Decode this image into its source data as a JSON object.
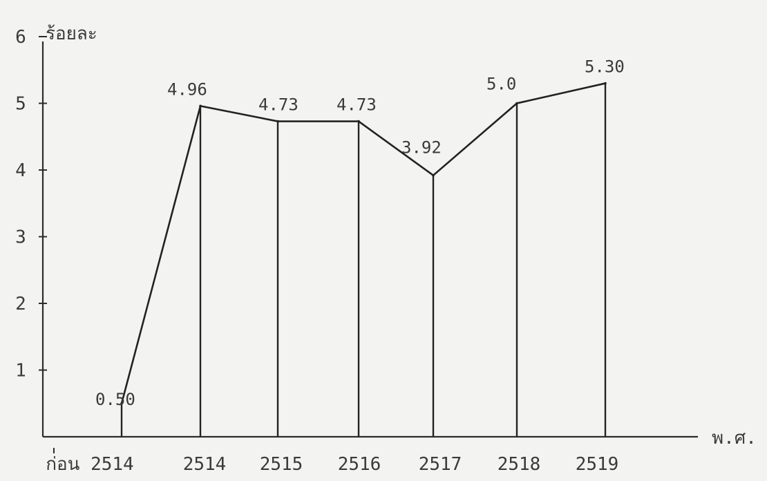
{
  "chart_data": {
    "type": "line",
    "ylabel": "ร้อยละ",
    "xlabel": "พ.ศ.",
    "ylim": [
      0,
      6
    ],
    "y_ticks": [
      "1",
      "2",
      "3",
      "4",
      "5",
      "6"
    ],
    "categories": [
      "ก่อน 2514",
      "2514",
      "2515",
      "2516",
      "2517",
      "2518",
      "2519"
    ],
    "values": [
      0.5,
      4.96,
      4.73,
      4.73,
      3.92,
      5.0,
      5.3
    ],
    "data_labels": [
      "0.50",
      "4.96",
      "4.73",
      "4.73",
      "3.92",
      "5.0",
      "5.30"
    ],
    "grid": false
  }
}
